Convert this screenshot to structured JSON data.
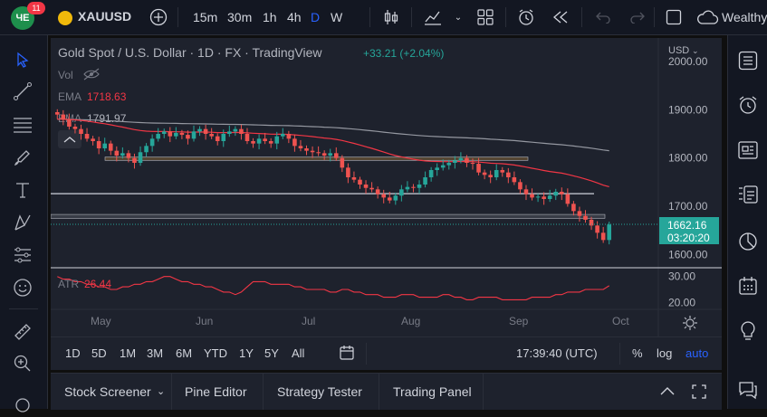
{
  "header": {
    "avatar_initials": "ЧЕ",
    "notification_count": "11",
    "symbol": "XAUUSD",
    "intervals": [
      "15m",
      "30m",
      "1h",
      "4h",
      "D",
      "W"
    ],
    "active_interval": "D",
    "account_name": "Wealthy"
  },
  "chart": {
    "title": "Gold Spot / U.S. Dollar · 1D · FX · TradingView",
    "change": "+33.21 (+2.04%)",
    "vol_label": "Vol",
    "ema1_label": "EMA",
    "ema1_value": "1718.63",
    "ema2_label": "EMA",
    "ema2_value": "1791.97",
    "currency": "USD",
    "price_ticks": [
      "2000.00",
      "1900.00",
      "1800.00",
      "1700.00",
      "1600.00"
    ],
    "last_price": "1662.16",
    "countdown": "03:20:20",
    "atr_label": "ATR",
    "atr_value": "26.44",
    "atr_ticks": [
      "30.00",
      "20.00"
    ],
    "months": [
      "May",
      "Jun",
      "Jul",
      "Aug",
      "Sep",
      "Oct"
    ],
    "colors": {
      "up": "#26a69a",
      "down": "#ef5350",
      "ema_red": "#f23645",
      "ema_gray": "#9598a1",
      "accent": "#2962ff"
    }
  },
  "bottom": {
    "ranges": [
      "1D",
      "5D",
      "1M",
      "3M",
      "6M",
      "YTD",
      "1Y",
      "5Y",
      "All"
    ],
    "time": "17:39:40 (UTC)",
    "percent": "%",
    "log": "log",
    "auto": "auto"
  },
  "panels": {
    "tabs": [
      "Stock Screener",
      "Pine Editor",
      "Strategy Tester",
      "Trading Panel"
    ]
  },
  "chart_data": {
    "type": "candlestick",
    "title": "Gold Spot / U.S. Dollar · 1D · FX · TradingView",
    "x_axis": [
      "May",
      "Jun",
      "Jul",
      "Aug",
      "Sep",
      "Oct"
    ],
    "ylim": [
      1580,
      2000
    ],
    "close": [
      1890,
      1880,
      1865,
      1860,
      1850,
      1840,
      1835,
      1820,
      1830,
      1815,
      1805,
      1810,
      1800,
      1790,
      1812,
      1825,
      1840,
      1850,
      1855,
      1845,
      1852,
      1848,
      1840,
      1855,
      1860,
      1850,
      1845,
      1835,
      1850,
      1855,
      1860,
      1850,
      1835,
      1830,
      1840,
      1835,
      1830,
      1845,
      1850,
      1840,
      1825,
      1820,
      1815,
      1812,
      1810,
      1805,
      1810,
      1800,
      1780,
      1760,
      1755,
      1745,
      1738,
      1735,
      1725,
      1718,
      1712,
      1722,
      1735,
      1740,
      1738,
      1745,
      1760,
      1775,
      1780,
      1785,
      1790,
      1795,
      1800,
      1790,
      1788,
      1770,
      1765,
      1760,
      1775,
      1770,
      1760,
      1750,
      1735,
      1725,
      1718,
      1720,
      1715,
      1722,
      1730,
      1725,
      1705,
      1690,
      1680,
      1672,
      1660,
      1645,
      1630,
      1662
    ],
    "atr": [
      30,
      29,
      29,
      28,
      28,
      27,
      27,
      26,
      26,
      25,
      25,
      26,
      26,
      27,
      27,
      28,
      28,
      29,
      30,
      30,
      29,
      28,
      28,
      27,
      27,
      26,
      26,
      25,
      24,
      24,
      23,
      24,
      26,
      28,
      28,
      28,
      27,
      27,
      27,
      27,
      26,
      26,
      25,
      25,
      25,
      25,
      24,
      24,
      25,
      25,
      24,
      24,
      23,
      23,
      23,
      22,
      22,
      22,
      23,
      23,
      23,
      22,
      22,
      22,
      22,
      23,
      23,
      22,
      22,
      21,
      21,
      22,
      22,
      22,
      22,
      21,
      21,
      21,
      21,
      21,
      22,
      22,
      22,
      22,
      23,
      23,
      24,
      24,
      24,
      25,
      25,
      25,
      25,
      26.44
    ],
    "ema_fast": [
      1718.63
    ],
    "ema_slow": [
      1791.97
    ],
    "last_price": 1662.16,
    "horizontal_zones": [
      [
        1795,
        1802
      ],
      [
        1675,
        1683
      ]
    ],
    "horizontal_line": 1726
  }
}
